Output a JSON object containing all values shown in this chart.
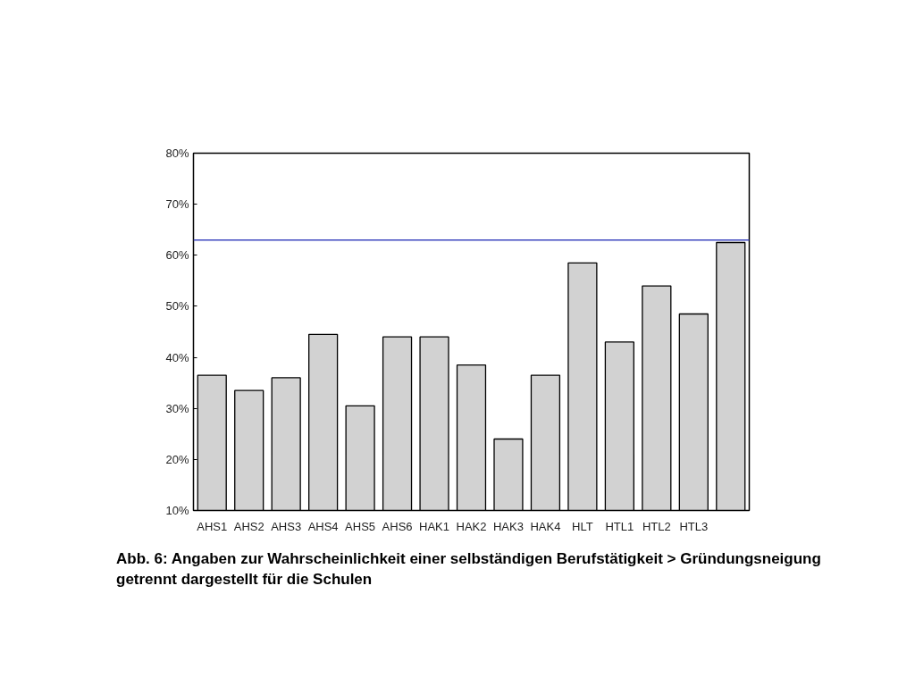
{
  "chart_data": {
    "type": "bar",
    "categories": [
      "AHS1",
      "AHS2",
      "AHS3",
      "AHS4",
      "AHS5",
      "AHS6",
      "HAK1",
      "HAK2",
      "HAK3",
      "HAK4",
      "HLT",
      "HTL1",
      "HTL2",
      "HTL3",
      null
    ],
    "values": [
      36.5,
      33.5,
      36,
      44.5,
      30.5,
      44,
      44,
      38.5,
      24,
      36.5,
      58.5,
      43,
      54,
      48.5,
      62.5
    ],
    "color": "#d2d2d2",
    "ylim": [
      10,
      80
    ],
    "yticks": [
      {
        "value": 10,
        "label": "10%"
      },
      {
        "value": 20,
        "label": "20%"
      },
      {
        "value": 30,
        "label": "30%"
      },
      {
        "value": 40,
        "label": "40%"
      },
      {
        "value": 50,
        "label": "50%"
      },
      {
        "value": 60,
        "label": "60%"
      },
      {
        "value": 70,
        "label": "70%"
      },
      {
        "value": 80,
        "label": "80%"
      }
    ],
    "ref_lines": [
      {
        "axis": "y",
        "value": 63,
        "color": "#3f48c0"
      }
    ],
    "grid": false,
    "annotations": [
      "Abb. 6: Angaben zur Wahrscheinlichkeit einer selbständigen Berufstätigkeit > Gründungsneigung getrennt dargestellt für die Schulen"
    ]
  }
}
